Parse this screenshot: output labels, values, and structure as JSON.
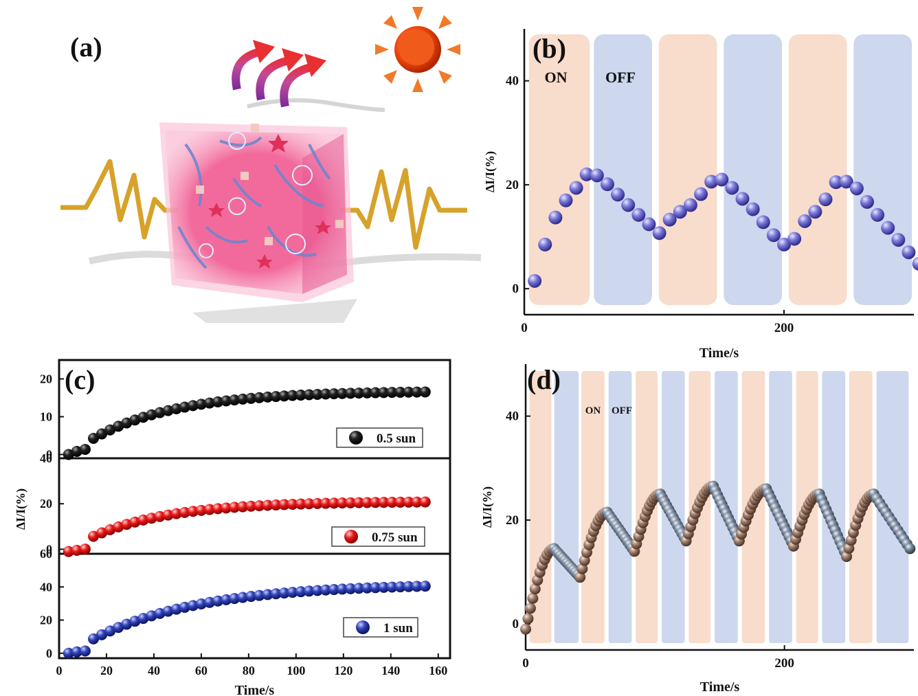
{
  "colors": {
    "on_band": "#f8dccc",
    "off_band": "#cdd7ee",
    "purple_ball": "#6a6ad0",
    "black_ball": "#1a1a1a",
    "red_ball": "#e21818",
    "blue_ball": "#2d3fb0",
    "brown_ball": "#9a7a68",
    "slate_ball": "#6f7d90",
    "hydrogel": "#f06aa0",
    "spring": "#d7a22a"
  },
  "illustration": {
    "label": "(a)",
    "icons": [
      "sun-icon",
      "heat-arrow-icon",
      "hydrogel-cube",
      "spring-electrode-icon"
    ]
  },
  "chart_data": [
    {
      "id": "b",
      "type": "scatter",
      "panel_label": "(b)",
      "xlabel": "Time/s",
      "ylabel": "ΔI/I(%)",
      "xlim": [
        0,
        300
      ],
      "ylim": [
        -5,
        50
      ],
      "xticks": [
        0,
        200
      ],
      "yticks": [
        0,
        20,
        40
      ],
      "annotations": [
        "ON",
        "OFF"
      ],
      "bands": [
        {
          "state": "on",
          "x0": 2,
          "x1": 52
        },
        {
          "state": "off",
          "x0": 52,
          "x1": 100
        },
        {
          "state": "on",
          "x0": 102,
          "x1": 150
        },
        {
          "state": "off",
          "x0": 152,
          "x1": 200
        },
        {
          "state": "on",
          "x0": 202,
          "x1": 250
        },
        {
          "state": "off",
          "x0": 252,
          "x1": 300
        }
      ],
      "series": [
        {
          "color": "purple",
          "x": [
            8,
            16,
            24,
            32,
            40,
            48,
            56,
            64,
            72,
            80,
            88,
            96,
            104,
            112,
            120,
            128,
            136,
            144,
            152,
            160,
            168,
            176,
            184,
            192,
            200,
            208,
            216,
            224,
            232,
            240,
            248,
            256,
            264,
            272,
            280,
            288,
            296,
            304
          ],
          "y": [
            1.5,
            8.5,
            13.7,
            17,
            19.4,
            22,
            21.8,
            20.1,
            18.1,
            16.1,
            14.2,
            12.4,
            10.7,
            13.3,
            14.8,
            16.1,
            18.2,
            20.6,
            21,
            19.4,
            17.3,
            15.3,
            12.8,
            10.3,
            8.5,
            9.6,
            13,
            14.8,
            17.2,
            20.5,
            20.6,
            19.3,
            16.7,
            14.2,
            11.7,
            9.4,
            7,
            4.8
          ]
        }
      ]
    },
    {
      "id": "c",
      "type": "scatter",
      "panel_label": "(c)",
      "xlabel": "Time/s",
      "ylabel": "ΔI/I(%)",
      "xlim": [
        0,
        165
      ],
      "xticks": [
        0,
        20,
        40,
        60,
        80,
        100,
        120,
        140,
        160
      ],
      "subplots": [
        {
          "legend": "0.5 sun",
          "color": "black",
          "ylim": [
            -1,
            25
          ],
          "yticks": [
            0,
            10,
            20
          ],
          "y_end": 16.8,
          "y_dip": 0.3,
          "rate": 0.028
        },
        {
          "legend": "0.75 sun",
          "color": "red",
          "ylim": [
            -2,
            40
          ],
          "yticks": [
            0,
            20,
            40
          ],
          "y_end": 21,
          "y_dip": -1,
          "rate": 0.03
        },
        {
          "legend": "1 sun",
          "color": "blue",
          "ylim": [
            -3,
            60
          ],
          "yticks": [
            0,
            20,
            40,
            60
          ],
          "y_end": 42,
          "y_dip": 0.3,
          "rate": 0.022
        }
      ]
    },
    {
      "id": "d",
      "type": "scatter",
      "panel_label": "(d)",
      "xlabel": "Time/s",
      "ylabel": "ΔI/I(%)",
      "xlim": [
        0,
        300
      ],
      "ylim": [
        -5,
        50
      ],
      "xticks": [
        0,
        200
      ],
      "yticks": [
        0,
        20,
        40
      ],
      "annotations": [
        "ON",
        "OFF"
      ],
      "bands": [
        {
          "state": "on",
          "x0": 2,
          "x1": 21
        },
        {
          "state": "off",
          "x0": 21,
          "x1": 42
        },
        {
          "state": "on",
          "x0": 42,
          "x1": 62
        },
        {
          "state": "off",
          "x0": 63,
          "x1": 83
        },
        {
          "state": "on",
          "x0": 84,
          "x1": 103
        },
        {
          "state": "off",
          "x0": 104,
          "x1": 124
        },
        {
          "state": "on",
          "x0": 125,
          "x1": 144
        },
        {
          "state": "off",
          "x0": 145,
          "x1": 165
        },
        {
          "state": "on",
          "x0": 166,
          "x1": 186
        },
        {
          "state": "off",
          "x0": 187,
          "x1": 207
        },
        {
          "state": "on",
          "x0": 208,
          "x1": 227
        },
        {
          "state": "off",
          "x0": 228,
          "x1": 248
        },
        {
          "state": "on",
          "x0": 249,
          "x1": 269
        },
        {
          "state": "off",
          "x0": 270,
          "x1": 297
        }
      ],
      "cycle_peaks": [
        {
          "t0": 0,
          "t1": 22,
          "y0": -1,
          "y1": 14.5
        },
        {
          "t1": 42,
          "y1": 9
        },
        {
          "t1": 63,
          "y1": 21.5
        },
        {
          "t1": 84,
          "y1": 14
        },
        {
          "t1": 104,
          "y1": 25
        },
        {
          "t1": 124,
          "y1": 16
        },
        {
          "t1": 145,
          "y1": 26.5
        },
        {
          "t1": 165,
          "y1": 16
        },
        {
          "t1": 186,
          "y1": 26
        },
        {
          "t1": 207,
          "y1": 15
        },
        {
          "t1": 227,
          "y1": 25
        },
        {
          "t1": 248,
          "y1": 13
        },
        {
          "t1": 269,
          "y1": 25
        },
        {
          "t1": 297,
          "y1": 14.5
        }
      ]
    }
  ]
}
